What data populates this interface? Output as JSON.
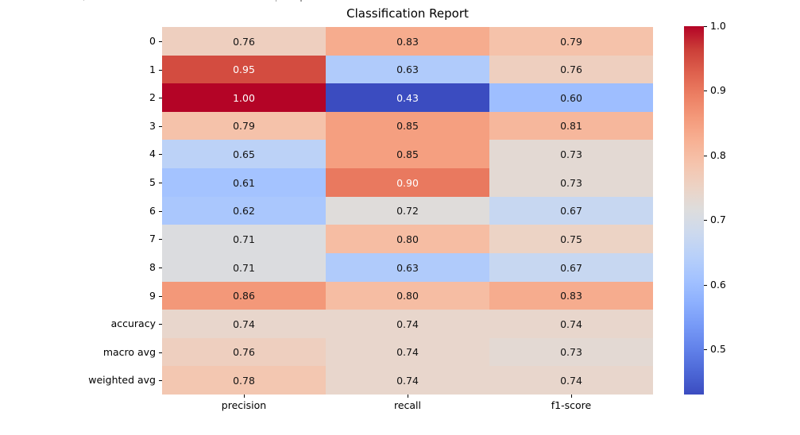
{
  "chart_data": {
    "type": "heatmap",
    "title": "Classification Report",
    "x_categories": [
      "precision",
      "recall",
      "f1-score"
    ],
    "y_categories": [
      "0",
      "1",
      "2",
      "3",
      "4",
      "5",
      "6",
      "7",
      "8",
      "9",
      "accuracy",
      "macro avg",
      "weighted avg"
    ],
    "values": [
      [
        0.76,
        0.83,
        0.79
      ],
      [
        0.95,
        0.63,
        0.76
      ],
      [
        1.0,
        0.43,
        0.6
      ],
      [
        0.79,
        0.85,
        0.81
      ],
      [
        0.65,
        0.85,
        0.73
      ],
      [
        0.61,
        0.9,
        0.73
      ],
      [
        0.62,
        0.72,
        0.67
      ],
      [
        0.71,
        0.8,
        0.75
      ],
      [
        0.71,
        0.63,
        0.67
      ],
      [
        0.86,
        0.8,
        0.83
      ],
      [
        0.74,
        0.74,
        0.74
      ],
      [
        0.76,
        0.74,
        0.73
      ],
      [
        0.78,
        0.74,
        0.74
      ]
    ],
    "annotation_decimals": 2,
    "colormap": "coolwarm",
    "vmin": 0.43,
    "vmax": 1.0,
    "legend_position": "none",
    "grid": false,
    "colorbar": {
      "position": "right",
      "tick_labels": [
        "1.0",
        "0.9",
        "0.8",
        "0.7",
        "0.6",
        "0.5"
      ],
      "tick_values": [
        1.0,
        0.9,
        0.8,
        0.7,
        0.6,
        0.5
      ]
    },
    "colormap_anchors": [
      "#3B4CC0",
      "#4D68D7",
      "#6282EA",
      "#779AF7",
      "#8DB0FE",
      "#A3C2FF",
      "#B8D0F9",
      "#CCD9EE",
      "#DDDDDD",
      "#ECD3C5",
      "#F5C4AD",
      "#F7B194",
      "#F49A7B",
      "#EC7F63",
      "#DE604D",
      "#CB3E38",
      "#B40426"
    ],
    "annotation_color_light_cell": "#141414",
    "annotation_color_dark_cell": "#FFFFFF"
  }
}
